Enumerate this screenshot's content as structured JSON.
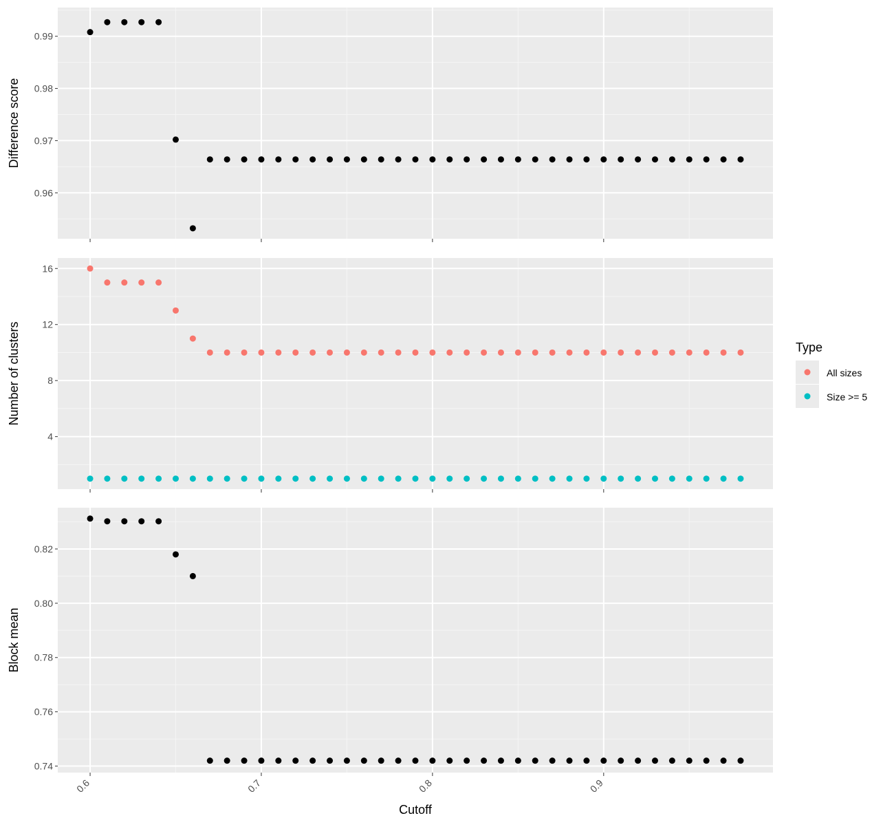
{
  "chart_data": [
    {
      "type": "scatter",
      "ylabel": "Difference score",
      "ylim": [
        0.9512,
        0.9955
      ],
      "yticks": [
        0.96,
        0.97,
        0.98,
        0.99
      ],
      "ytick_labels": [
        "0.96",
        "0.97",
        "0.98",
        "0.99"
      ],
      "grid": true,
      "series": [
        {
          "color": "#000000",
          "x": [
            0.6,
            0.61,
            0.62,
            0.63,
            0.64,
            0.65,
            0.66,
            0.67,
            0.68,
            0.69,
            0.7,
            0.71,
            0.72,
            0.73,
            0.74,
            0.75,
            0.76,
            0.77,
            0.78,
            0.79,
            0.8,
            0.81,
            0.82,
            0.83,
            0.84,
            0.85,
            0.86,
            0.87,
            0.88,
            0.89,
            0.9,
            0.91,
            0.92,
            0.93,
            0.94,
            0.95,
            0.96,
            0.97,
            0.98
          ],
          "y": [
            0.9908,
            0.9927,
            0.9927,
            0.9927,
            0.9927,
            0.9702,
            0.9532,
            0.9664,
            0.9664,
            0.9664,
            0.9664,
            0.9664,
            0.9664,
            0.9664,
            0.9664,
            0.9664,
            0.9664,
            0.9664,
            0.9664,
            0.9664,
            0.9664,
            0.9664,
            0.9664,
            0.9664,
            0.9664,
            0.9664,
            0.9664,
            0.9664,
            0.9664,
            0.9664,
            0.9664,
            0.9664,
            0.9664,
            0.9664,
            0.9664,
            0.9664,
            0.9664,
            0.9664,
            0.9664
          ]
        }
      ]
    },
    {
      "type": "scatter",
      "ylabel": "Number of clusters",
      "ylim": [
        0.25,
        16.75
      ],
      "yticks": [
        4,
        8,
        12,
        16
      ],
      "ytick_labels": [
        "4",
        "8",
        "12",
        "16"
      ],
      "grid": true,
      "legend_title": "Type",
      "legend_position": "right",
      "series": [
        {
          "name": "All sizes",
          "color": "#F8766D",
          "x": [
            0.6,
            0.61,
            0.62,
            0.63,
            0.64,
            0.65,
            0.66,
            0.67,
            0.68,
            0.69,
            0.7,
            0.71,
            0.72,
            0.73,
            0.74,
            0.75,
            0.76,
            0.77,
            0.78,
            0.79,
            0.8,
            0.81,
            0.82,
            0.83,
            0.84,
            0.85,
            0.86,
            0.87,
            0.88,
            0.89,
            0.9,
            0.91,
            0.92,
            0.93,
            0.94,
            0.95,
            0.96,
            0.97,
            0.98
          ],
          "y": [
            16,
            15,
            15,
            15,
            15,
            13,
            11,
            10,
            10,
            10,
            10,
            10,
            10,
            10,
            10,
            10,
            10,
            10,
            10,
            10,
            10,
            10,
            10,
            10,
            10,
            10,
            10,
            10,
            10,
            10,
            10,
            10,
            10,
            10,
            10,
            10,
            10,
            10,
            10
          ]
        },
        {
          "name": "Size >= 5",
          "color": "#00BFC4",
          "x": [
            0.6,
            0.61,
            0.62,
            0.63,
            0.64,
            0.65,
            0.66,
            0.67,
            0.68,
            0.69,
            0.7,
            0.71,
            0.72,
            0.73,
            0.74,
            0.75,
            0.76,
            0.77,
            0.78,
            0.79,
            0.8,
            0.81,
            0.82,
            0.83,
            0.84,
            0.85,
            0.86,
            0.87,
            0.88,
            0.89,
            0.9,
            0.91,
            0.92,
            0.93,
            0.94,
            0.95,
            0.96,
            0.97,
            0.98
          ],
          "y": [
            1,
            1,
            1,
            1,
            1,
            1,
            1,
            1,
            1,
            1,
            1,
            1,
            1,
            1,
            1,
            1,
            1,
            1,
            1,
            1,
            1,
            1,
            1,
            1,
            1,
            1,
            1,
            1,
            1,
            1,
            1,
            1,
            1,
            1,
            1,
            1,
            1,
            1,
            1
          ]
        }
      ]
    },
    {
      "type": "scatter",
      "xlabel": "Cutoff",
      "ylabel": "Block mean",
      "ylim": [
        0.7376,
        0.8352
      ],
      "yticks": [
        0.74,
        0.76,
        0.78,
        0.8,
        0.82
      ],
      "ytick_labels": [
        "0.74",
        "0.76",
        "0.78",
        "0.80",
        "0.82"
      ],
      "xlim": [
        0.5811,
        0.9989
      ],
      "xticks": [
        0.6,
        0.7,
        0.8,
        0.9
      ],
      "xtick_labels": [
        "0.6",
        "0.7",
        "0.8",
        "0.9"
      ],
      "grid": true,
      "series": [
        {
          "color": "#000000",
          "x": [
            0.6,
            0.61,
            0.62,
            0.63,
            0.64,
            0.65,
            0.66,
            0.67,
            0.68,
            0.69,
            0.7,
            0.71,
            0.72,
            0.73,
            0.74,
            0.75,
            0.76,
            0.77,
            0.78,
            0.79,
            0.8,
            0.81,
            0.82,
            0.83,
            0.84,
            0.85,
            0.86,
            0.87,
            0.88,
            0.89,
            0.9,
            0.91,
            0.92,
            0.93,
            0.94,
            0.95,
            0.96,
            0.97,
            0.98
          ],
          "y": [
            0.8312,
            0.8302,
            0.8302,
            0.8302,
            0.8302,
            0.818,
            0.81,
            0.742,
            0.742,
            0.742,
            0.742,
            0.742,
            0.742,
            0.742,
            0.742,
            0.742,
            0.742,
            0.742,
            0.742,
            0.742,
            0.742,
            0.742,
            0.742,
            0.742,
            0.742,
            0.742,
            0.742,
            0.742,
            0.742,
            0.742,
            0.742,
            0.742,
            0.742,
            0.742,
            0.742,
            0.742,
            0.742,
            0.742,
            0.742
          ]
        }
      ]
    }
  ]
}
